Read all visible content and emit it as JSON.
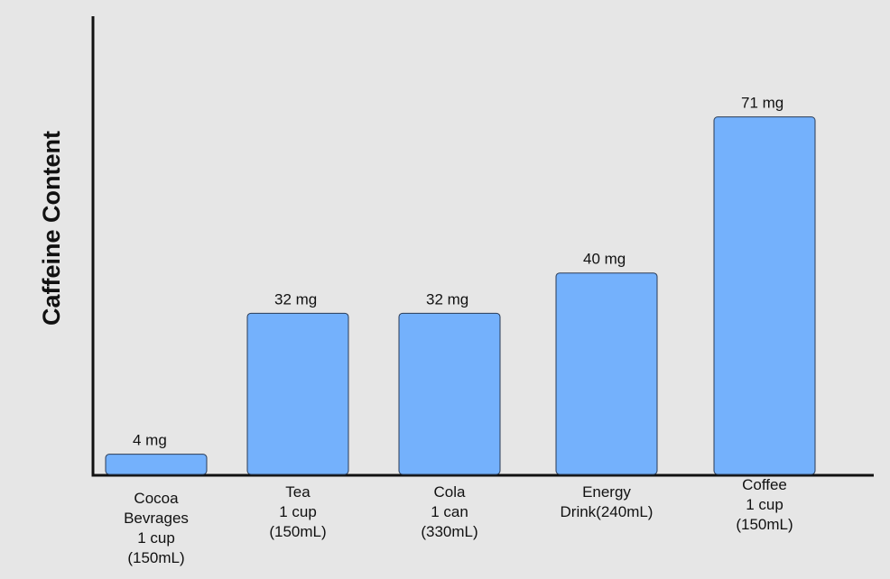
{
  "chart_data": {
    "type": "bar",
    "title": "",
    "xlabel": "",
    "ylabel": "Caffeine Content",
    "categories": [
      [
        "Cocoa",
        "Bevrages",
        "1 cup",
        "(150mL)"
      ],
      [
        "Tea",
        "1 cup",
        "(150mL)"
      ],
      [
        "Cola",
        "1 can",
        "(330mL)"
      ],
      [
        "Energy",
        "Drink(240mL)"
      ],
      [
        "Coffee",
        "1 cup",
        "(150mL)"
      ]
    ],
    "values": [
      4,
      32,
      32,
      40,
      71
    ],
    "value_labels": [
      "4 mg",
      "32 mg",
      "32 mg",
      "40 mg",
      "71 mg"
    ],
    "ylim": [
      0,
      91
    ],
    "grid": false,
    "legend": "none",
    "bar_color": "#74b1fc",
    "axis_color": "#111111"
  }
}
